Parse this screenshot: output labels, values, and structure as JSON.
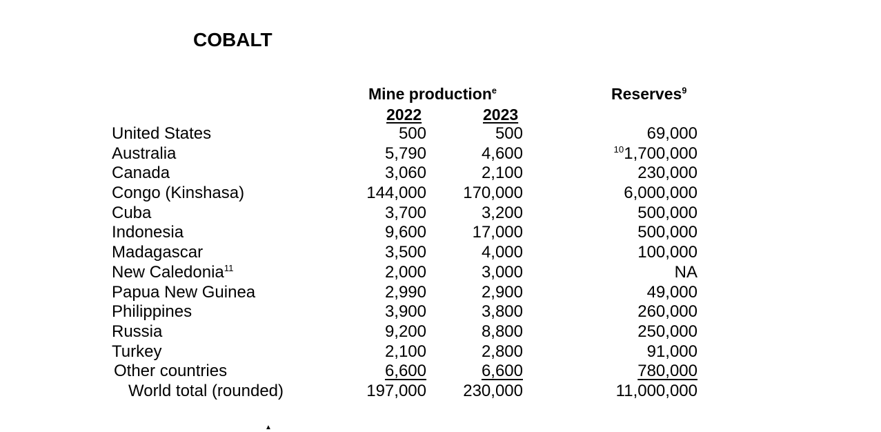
{
  "title": "COBALT",
  "headers": {
    "mine_production": "Mine production",
    "mine_production_sup": "e",
    "year1": "2022",
    "year2": "2023",
    "reserves": "Reserves",
    "reserves_sup": "9"
  },
  "rows": [
    {
      "country": "United States",
      "country_sup": "",
      "p2022": "500",
      "p2023": "500",
      "reserves_sup": "",
      "reserves": "69,000"
    },
    {
      "country": "Australia",
      "country_sup": "",
      "p2022": "5,790",
      "p2023": "4,600",
      "reserves_sup": "10",
      "reserves": "1,700,000"
    },
    {
      "country": "Canada",
      "country_sup": "",
      "p2022": "3,060",
      "p2023": "2,100",
      "reserves_sup": "",
      "reserves": "230,000"
    },
    {
      "country": "Congo (Kinshasa)",
      "country_sup": "",
      "p2022": "144,000",
      "p2023": "170,000",
      "reserves_sup": "",
      "reserves": "6,000,000"
    },
    {
      "country": "Cuba",
      "country_sup": "",
      "p2022": "3,700",
      "p2023": "3,200",
      "reserves_sup": "",
      "reserves": "500,000"
    },
    {
      "country": "Indonesia",
      "country_sup": "",
      "p2022": "9,600",
      "p2023": "17,000",
      "reserves_sup": "",
      "reserves": "500,000"
    },
    {
      "country": "Madagascar",
      "country_sup": "",
      "p2022": "3,500",
      "p2023": "4,000",
      "reserves_sup": "",
      "reserves": "100,000"
    },
    {
      "country": "New Caledonia",
      "country_sup": "11",
      "p2022": "2,000",
      "p2023": "3,000",
      "reserves_sup": "",
      "reserves": "NA"
    },
    {
      "country": "Papua New Guinea",
      "country_sup": "",
      "p2022": "2,990",
      "p2023": "2,900",
      "reserves_sup": "",
      "reserves": "49,000"
    },
    {
      "country": "Philippines",
      "country_sup": "",
      "p2022": "3,900",
      "p2023": "3,800",
      "reserves_sup": "",
      "reserves": "260,000"
    },
    {
      "country": "Russia",
      "country_sup": "",
      "p2022": "9,200",
      "p2023": "8,800",
      "reserves_sup": "",
      "reserves": "250,000"
    },
    {
      "country": "Turkey",
      "country_sup": "",
      "p2022": "2,100",
      "p2023": "2,800",
      "reserves_sup": "",
      "reserves": "91,000"
    }
  ],
  "other": {
    "country": "Other countries",
    "p2022": "6,600",
    "p2023": "6,600",
    "reserves": "780,000"
  },
  "total": {
    "country": "World total (rounded)",
    "p2022": "197,000",
    "p2023": "230,000",
    "reserves": "11,000,000"
  }
}
